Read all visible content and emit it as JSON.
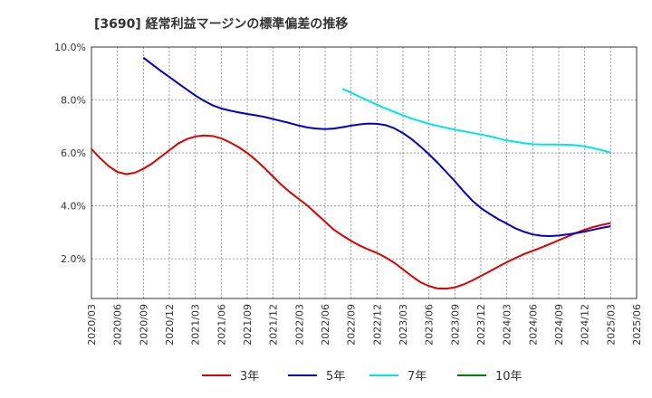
{
  "chart_data": {
    "type": "line",
    "title": "[3690]  経常利益マージンの標準偏差の推移",
    "xlabel": "",
    "ylabel": "",
    "ylim": [
      0.5,
      10.0
    ],
    "grid": true,
    "legend_position": "bottom",
    "y_ticks": [
      {
        "value": 2.0,
        "label": "2.0%"
      },
      {
        "value": 4.0,
        "label": "4.0%"
      },
      {
        "value": 6.0,
        "label": "6.0%"
      },
      {
        "value": 8.0,
        "label": "8.0%"
      },
      {
        "value": 10.0,
        "label": "10.0%"
      }
    ],
    "x_ticks": [
      "2020/03",
      "2020/06",
      "2020/09",
      "2020/12",
      "2021/03",
      "2021/06",
      "2021/09",
      "2021/12",
      "2022/03",
      "2022/06",
      "2022/09",
      "2022/12",
      "2023/03",
      "2023/06",
      "2023/09",
      "2023/12",
      "2024/03",
      "2024/06",
      "2024/09",
      "2024/12",
      "2025/03",
      "2025/06"
    ],
    "series": [
      {
        "name": "3年",
        "color": "#e00000",
        "points": [
          [
            "2020/03",
            6.15
          ],
          [
            "2020/04",
            5.8
          ],
          [
            "2020/05",
            5.5
          ],
          [
            "2020/06",
            5.28
          ],
          [
            "2020/07",
            5.2
          ],
          [
            "2020/08",
            5.25
          ],
          [
            "2020/09",
            5.4
          ],
          [
            "2020/10",
            5.6
          ],
          [
            "2020/11",
            5.85
          ],
          [
            "2020/12",
            6.1
          ],
          [
            "2021/01",
            6.35
          ],
          [
            "2021/02",
            6.52
          ],
          [
            "2021/03",
            6.62
          ],
          [
            "2021/04",
            6.66
          ],
          [
            "2021/05",
            6.64
          ],
          [
            "2021/06",
            6.55
          ],
          [
            "2021/07",
            6.4
          ],
          [
            "2021/08",
            6.22
          ],
          [
            "2021/09",
            6.0
          ],
          [
            "2021/10",
            5.73
          ],
          [
            "2021/11",
            5.43
          ],
          [
            "2021/12",
            5.1
          ],
          [
            "2022/01",
            4.78
          ],
          [
            "2022/02",
            4.5
          ],
          [
            "2022/03",
            4.25
          ],
          [
            "2022/04",
            4.0
          ],
          [
            "2022/05",
            3.7
          ],
          [
            "2022/06",
            3.4
          ],
          [
            "2022/07",
            3.1
          ],
          [
            "2022/08",
            2.88
          ],
          [
            "2022/09",
            2.68
          ],
          [
            "2022/10",
            2.5
          ],
          [
            "2022/11",
            2.35
          ],
          [
            "2022/12",
            2.22
          ],
          [
            "2023/01",
            2.05
          ],
          [
            "2023/02",
            1.85
          ],
          [
            "2023/03",
            1.6
          ],
          [
            "2023/04",
            1.35
          ],
          [
            "2023/05",
            1.12
          ],
          [
            "2023/06",
            0.97
          ],
          [
            "2023/07",
            0.88
          ],
          [
            "2023/08",
            0.87
          ],
          [
            "2023/09",
            0.92
          ],
          [
            "2023/10",
            1.03
          ],
          [
            "2023/11",
            1.18
          ],
          [
            "2023/12",
            1.35
          ],
          [
            "2024/01",
            1.52
          ],
          [
            "2024/02",
            1.7
          ],
          [
            "2024/03",
            1.87
          ],
          [
            "2024/04",
            2.03
          ],
          [
            "2024/05",
            2.18
          ],
          [
            "2024/06",
            2.3
          ],
          [
            "2024/07",
            2.43
          ],
          [
            "2024/08",
            2.56
          ],
          [
            "2024/09",
            2.7
          ],
          [
            "2024/10",
            2.84
          ],
          [
            "2024/11",
            2.98
          ],
          [
            "2024/12",
            3.1
          ],
          [
            "2025/01",
            3.2
          ],
          [
            "2025/02",
            3.28
          ],
          [
            "2025/03",
            3.35
          ]
        ]
      },
      {
        "name": "5年",
        "color": "#0000c8",
        "points": [
          [
            "2020/09",
            9.6
          ],
          [
            "2020/10",
            9.35
          ],
          [
            "2020/11",
            9.1
          ],
          [
            "2020/12",
            8.87
          ],
          [
            "2021/01",
            8.63
          ],
          [
            "2021/02",
            8.4
          ],
          [
            "2021/03",
            8.17
          ],
          [
            "2021/04",
            7.97
          ],
          [
            "2021/05",
            7.8
          ],
          [
            "2021/06",
            7.68
          ],
          [
            "2021/07",
            7.6
          ],
          [
            "2021/08",
            7.53
          ],
          [
            "2021/09",
            7.47
          ],
          [
            "2021/10",
            7.42
          ],
          [
            "2021/11",
            7.36
          ],
          [
            "2021/12",
            7.28
          ],
          [
            "2022/01",
            7.2
          ],
          [
            "2022/02",
            7.12
          ],
          [
            "2022/03",
            7.03
          ],
          [
            "2022/04",
            6.96
          ],
          [
            "2022/05",
            6.92
          ],
          [
            "2022/06",
            6.9
          ],
          [
            "2022/07",
            6.92
          ],
          [
            "2022/08",
            6.97
          ],
          [
            "2022/09",
            7.03
          ],
          [
            "2022/10",
            7.08
          ],
          [
            "2022/11",
            7.11
          ],
          [
            "2022/12",
            7.1
          ],
          [
            "2023/01",
            7.05
          ],
          [
            "2023/02",
            6.93
          ],
          [
            "2023/03",
            6.75
          ],
          [
            "2023/04",
            6.52
          ],
          [
            "2023/05",
            6.25
          ],
          [
            "2023/06",
            5.95
          ],
          [
            "2023/07",
            5.63
          ],
          [
            "2023/08",
            5.28
          ],
          [
            "2023/09",
            4.93
          ],
          [
            "2023/10",
            4.55
          ],
          [
            "2023/11",
            4.2
          ],
          [
            "2023/12",
            3.92
          ],
          [
            "2024/01",
            3.7
          ],
          [
            "2024/02",
            3.5
          ],
          [
            "2024/03",
            3.33
          ],
          [
            "2024/04",
            3.15
          ],
          [
            "2024/05",
            3.02
          ],
          [
            "2024/06",
            2.92
          ],
          [
            "2024/07",
            2.87
          ],
          [
            "2024/08",
            2.86
          ],
          [
            "2024/09",
            2.88
          ],
          [
            "2024/10",
            2.92
          ],
          [
            "2024/11",
            2.97
          ],
          [
            "2024/12",
            3.03
          ],
          [
            "2025/01",
            3.1
          ],
          [
            "2025/02",
            3.17
          ],
          [
            "2025/03",
            3.23
          ]
        ]
      },
      {
        "name": "7年",
        "color": "#00e6e6",
        "points": [
          [
            "2022/08",
            8.42
          ],
          [
            "2022/09",
            8.28
          ],
          [
            "2022/10",
            8.12
          ],
          [
            "2022/11",
            7.97
          ],
          [
            "2022/12",
            7.82
          ],
          [
            "2023/01",
            7.68
          ],
          [
            "2023/02",
            7.55
          ],
          [
            "2023/03",
            7.42
          ],
          [
            "2023/04",
            7.3
          ],
          [
            "2023/05",
            7.2
          ],
          [
            "2023/06",
            7.1
          ],
          [
            "2023/07",
            7.02
          ],
          [
            "2023/08",
            6.95
          ],
          [
            "2023/09",
            6.88
          ],
          [
            "2023/10",
            6.82
          ],
          [
            "2023/11",
            6.76
          ],
          [
            "2023/12",
            6.7
          ],
          [
            "2024/01",
            6.63
          ],
          [
            "2024/02",
            6.55
          ],
          [
            "2024/03",
            6.47
          ],
          [
            "2024/04",
            6.42
          ],
          [
            "2024/05",
            6.37
          ],
          [
            "2024/06",
            6.33
          ],
          [
            "2024/07",
            6.32
          ],
          [
            "2024/08",
            6.32
          ],
          [
            "2024/09",
            6.32
          ],
          [
            "2024/10",
            6.31
          ],
          [
            "2024/11",
            6.29
          ],
          [
            "2024/12",
            6.25
          ],
          [
            "2025/01",
            6.18
          ],
          [
            "2025/02",
            6.1
          ],
          [
            "2025/03",
            6.02
          ]
        ]
      },
      {
        "name": "10年",
        "color": "#008000",
        "points": []
      }
    ]
  }
}
